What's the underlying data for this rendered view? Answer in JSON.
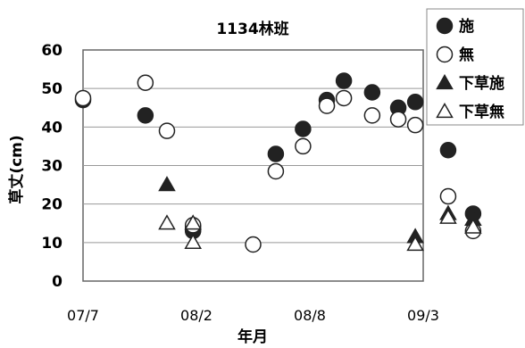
{
  "chart_data": {
    "type": "scatter",
    "title": "1134林班",
    "xlabel": "年月",
    "ylabel": "草丈(cm)",
    "ylim": [
      0,
      60
    ],
    "yticks": [
      0,
      10,
      20,
      30,
      40,
      50,
      60
    ],
    "xticks": [
      "07/7",
      "08/2",
      "08/8",
      "09/3"
    ],
    "grid": true,
    "legend_position": "right",
    "series": [
      {
        "name": "施",
        "marker": "filled-circle",
        "points": [
          {
            "x": 0.0,
            "y": 47
          },
          {
            "x": 0.55,
            "y": 43
          },
          {
            "x": 0.97,
            "y": 14
          },
          {
            "x": 0.97,
            "y": 13
          },
          {
            "x": 1.7,
            "y": 33
          },
          {
            "x": 1.94,
            "y": 39.5
          },
          {
            "x": 2.15,
            "y": 47
          },
          {
            "x": 2.3,
            "y": 52
          },
          {
            "x": 2.55,
            "y": 49
          },
          {
            "x": 2.78,
            "y": 45
          },
          {
            "x": 2.93,
            "y": 46.5
          },
          {
            "x": 3.22,
            "y": 34
          },
          {
            "x": 3.44,
            "y": 17.5
          }
        ]
      },
      {
        "name": "無",
        "marker": "open-circle",
        "points": [
          {
            "x": 0.0,
            "y": 47.5
          },
          {
            "x": 0.55,
            "y": 51.5
          },
          {
            "x": 0.74,
            "y": 39
          },
          {
            "x": 0.97,
            "y": 14.5
          },
          {
            "x": 1.5,
            "y": 9.5
          },
          {
            "x": 1.7,
            "y": 28.5
          },
          {
            "x": 1.94,
            "y": 35
          },
          {
            "x": 2.15,
            "y": 45.5
          },
          {
            "x": 2.3,
            "y": 47.5
          },
          {
            "x": 2.55,
            "y": 43
          },
          {
            "x": 2.78,
            "y": 42
          },
          {
            "x": 2.93,
            "y": 40.5
          },
          {
            "x": 3.22,
            "y": 22
          },
          {
            "x": 3.44,
            "y": 13
          }
        ]
      },
      {
        "name": "下草施",
        "marker": "filled-triangle",
        "points": [
          {
            "x": 0.74,
            "y": 25
          },
          {
            "x": 2.93,
            "y": 11.5
          },
          {
            "x": 3.22,
            "y": 17.5
          },
          {
            "x": 3.44,
            "y": 16
          }
        ]
      },
      {
        "name": "下草無",
        "marker": "open-triangle",
        "points": [
          {
            "x": 0.74,
            "y": 15
          },
          {
            "x": 0.97,
            "y": 15
          },
          {
            "x": 0.97,
            "y": 10
          },
          {
            "x": 2.93,
            "y": 9.5
          },
          {
            "x": 3.22,
            "y": 16.5
          },
          {
            "x": 3.44,
            "y": 14
          }
        ]
      }
    ]
  }
}
